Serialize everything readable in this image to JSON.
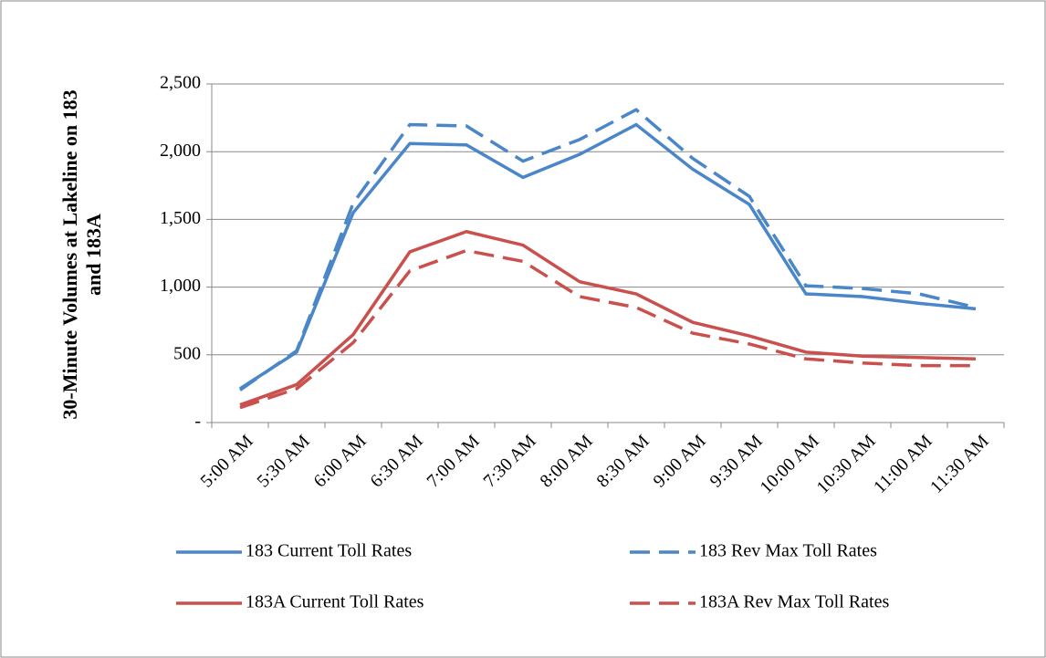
{
  "chart_data": {
    "type": "line",
    "y_axis_label": "30-Minute Volumes at Lakeline on 183 and 183A",
    "categories": [
      "5:00 AM",
      "5:30 AM",
      "6:00 AM",
      "6:30 AM",
      "7:00 AM",
      "7:30 AM",
      "8:00 AM",
      "8:30 AM",
      "9:00 AM",
      "9:30 AM",
      "10:00 AM",
      "10:30 AM",
      "11:00 AM",
      "11:30 AM"
    ],
    "series": [
      {
        "name": "183 Current Toll Rates",
        "color": "#4a86c8",
        "style": "solid",
        "values": [
          250,
          520,
          1550,
          2060,
          2050,
          1810,
          1980,
          2200,
          1870,
          1610,
          950,
          930,
          880,
          840
        ]
      },
      {
        "name": "183 Rev Max Toll Rates",
        "color": "#4a86c8",
        "style": "dashed",
        "values": [
          240,
          530,
          1620,
          2200,
          2190,
          1930,
          2090,
          2310,
          1950,
          1670,
          1010,
          990,
          950,
          850
        ]
      },
      {
        "name": "183A Current Toll Rates",
        "color": "#c9504d",
        "style": "solid",
        "values": [
          130,
          280,
          650,
          1260,
          1410,
          1310,
          1040,
          950,
          740,
          640,
          520,
          490,
          480,
          470
        ]
      },
      {
        "name": "183A Rev Max Toll Rates",
        "color": "#c9504d",
        "style": "dashed",
        "values": [
          110,
          250,
          590,
          1120,
          1270,
          1190,
          930,
          850,
          660,
          580,
          470,
          440,
          420,
          420
        ]
      }
    ],
    "ylim": [
      0,
      2500
    ],
    "yticks": [
      {
        "value": 0,
        "label": "-"
      },
      {
        "value": 500,
        "label": "500"
      },
      {
        "value": 1000,
        "label": "1,000"
      },
      {
        "value": 1500,
        "label": "1,500"
      },
      {
        "value": 2000,
        "label": "2,000"
      },
      {
        "value": 2500,
        "label": "2,500"
      }
    ],
    "grid": true,
    "legend": "bottom"
  }
}
